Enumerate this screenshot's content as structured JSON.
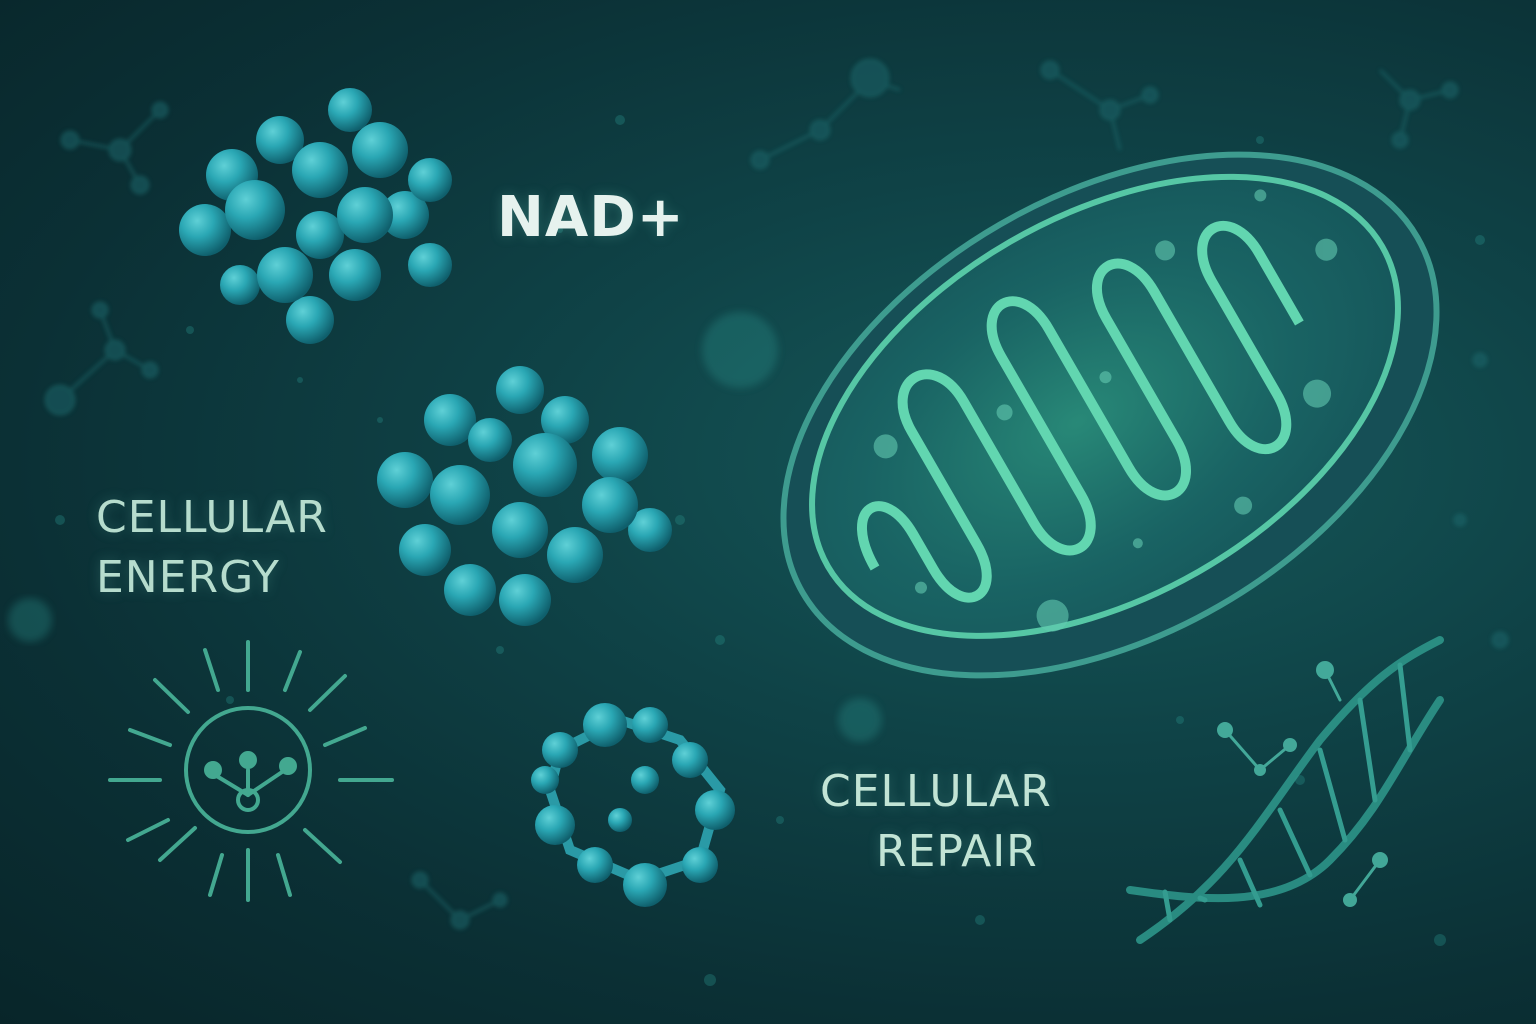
{
  "labels": {
    "title": "NAD+",
    "cellular_energy_line1": "CELLULAR",
    "cellular_energy_line2": "ENERGY",
    "cellular_repair_line1": "CELLULAR",
    "cellular_repair_line2": "REPAIR"
  },
  "colors": {
    "background_dark": "#082529",
    "background_glow": "#16595a",
    "molecule": "#2aa7b4",
    "mitochondria_line": "#5fd3b0",
    "text_primary": "#e6f2ee",
    "text_secondary": "#b6dccd"
  },
  "icons": [
    "molecule-cluster",
    "mitochondrion",
    "energy-sun-icon",
    "dna-helix"
  ]
}
